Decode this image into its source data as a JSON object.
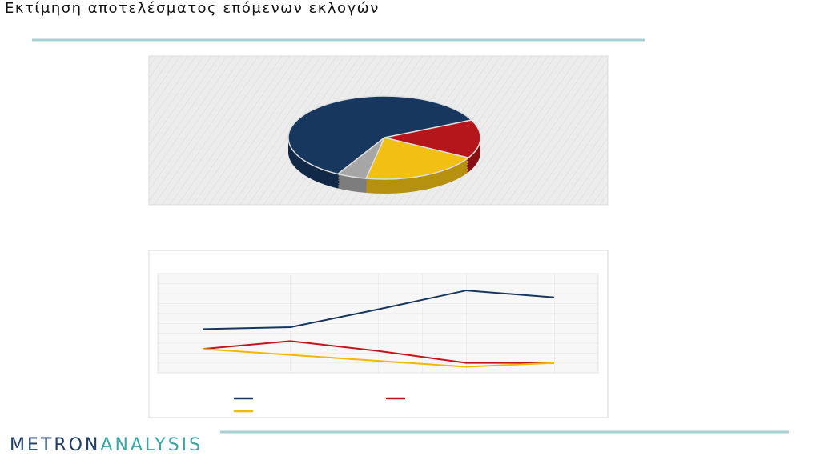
{
  "title": "Εκτίμηση αποτελέσματος επόμενων εκλογών",
  "logo": {
    "part1": "METRON",
    "part2": "ANALYSIS"
  },
  "chart_data": [
    {
      "type": "pie",
      "categories": [
        null,
        null,
        null,
        null
      ],
      "values": [
        15,
        20,
        5,
        60
      ],
      "colors": [
        "#b5161b",
        "#f2c014",
        "#a6a6a6",
        "#17375e"
      ]
    },
    {
      "type": "line",
      "categories": [
        null,
        null,
        null,
        null,
        null
      ],
      "ylim": [
        0,
        50
      ],
      "grid": true,
      "series": [
        {
          "color": "#17375e",
          "values": [
            22,
            23,
            32,
            41.5,
            38
          ]
        },
        {
          "color": "#c0161b",
          "values": [
            12,
            16,
            11,
            5,
            5
          ]
        },
        {
          "color": "#f2b800",
          "values": [
            12,
            9,
            6,
            3,
            5
          ]
        }
      ]
    }
  ]
}
